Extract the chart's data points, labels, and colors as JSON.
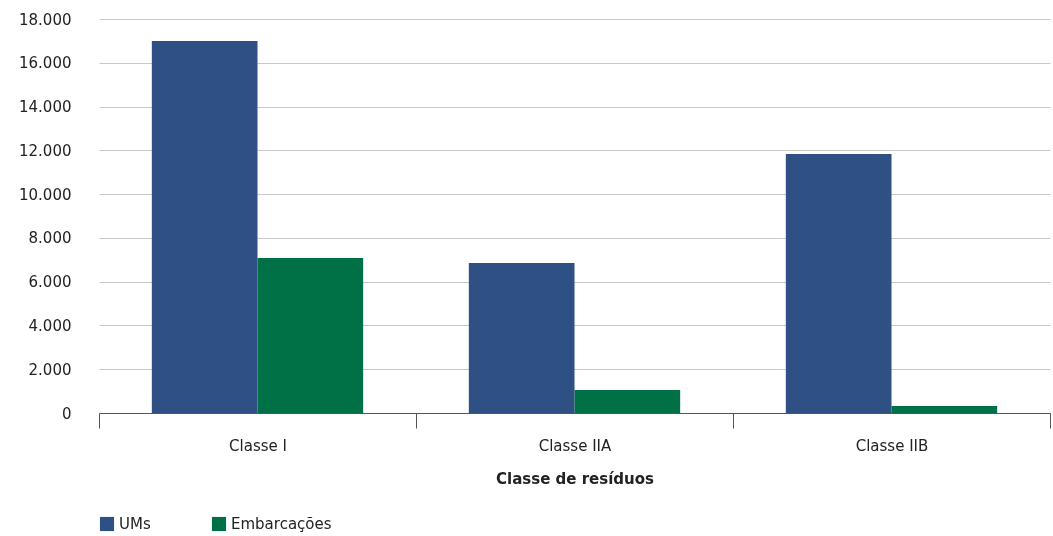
{
  "chart_data": {
    "type": "bar",
    "xlabel": "Classe de resíduos",
    "categories": [
      "Classe I",
      "Classe IIA",
      "Classe IIB"
    ],
    "series": [
      {
        "name": "UMs",
        "color": "#2e5085",
        "values": [
          17000,
          6850,
          11830
        ]
      },
      {
        "name": "Embarcações",
        "color": "#007146",
        "values": [
          7080,
          1050,
          320
        ]
      }
    ],
    "ylim": [
      0,
      18000
    ],
    "yticks": [
      {
        "value": 0,
        "label": "0"
      },
      {
        "value": 2000,
        "label": "2.000"
      },
      {
        "value": 4000,
        "label": "4.000"
      },
      {
        "value": 6000,
        "label": "6.000"
      },
      {
        "value": 8000,
        "label": "8.000"
      },
      {
        "value": 10000,
        "label": "10.000"
      },
      {
        "value": 12000,
        "label": "12.000"
      },
      {
        "value": 14000,
        "label": "14.000"
      },
      {
        "value": 16000,
        "label": "16.000"
      },
      {
        "value": 18000,
        "label": "18.000"
      }
    ],
    "grid": "y",
    "legend": "bottom"
  }
}
